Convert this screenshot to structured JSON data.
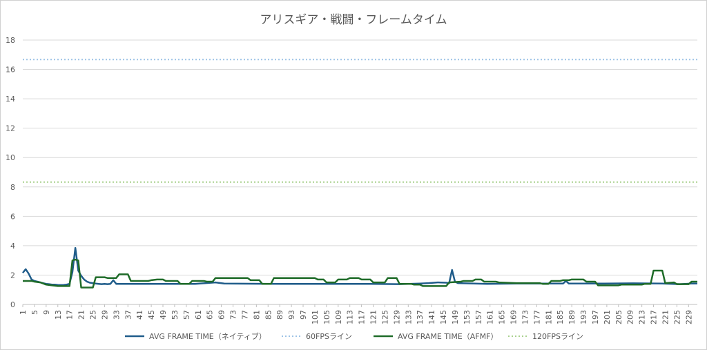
{
  "chart_data": {
    "type": "line",
    "title": "アリスギア・戦闘・フレームタイム",
    "xlabel": "",
    "ylabel": "",
    "ylim": [
      0,
      18
    ],
    "yticks": [
      0,
      2,
      4,
      6,
      8,
      10,
      12,
      14,
      16,
      18
    ],
    "xrange": [
      1,
      232
    ],
    "xtick_start": 1,
    "xtick_step": 4,
    "grid": true,
    "legend_position": "bottom",
    "series": [
      {
        "name": "AVG FRAME TIME（ネイティブ）",
        "color": "#1f5c8a",
        "style": "solid",
        "points": [
          [
            1,
            2.15
          ],
          [
            2,
            2.4
          ],
          [
            3,
            2.1
          ],
          [
            4,
            1.7
          ],
          [
            5,
            1.6
          ],
          [
            6,
            1.55
          ],
          [
            7,
            1.5
          ],
          [
            8,
            1.45
          ],
          [
            9,
            1.4
          ],
          [
            10,
            1.38
          ],
          [
            11,
            1.35
          ],
          [
            12,
            1.35
          ],
          [
            13,
            1.33
          ],
          [
            14,
            1.32
          ],
          [
            15,
            1.33
          ],
          [
            16,
            1.35
          ],
          [
            17,
            1.4
          ],
          [
            18,
            2.2
          ],
          [
            19,
            3.85
          ],
          [
            20,
            2.3
          ],
          [
            21,
            1.95
          ],
          [
            22,
            1.7
          ],
          [
            23,
            1.55
          ],
          [
            24,
            1.48
          ],
          [
            25,
            1.45
          ],
          [
            26,
            1.42
          ],
          [
            27,
            1.4
          ],
          [
            28,
            1.38
          ],
          [
            29,
            1.4
          ],
          [
            30,
            1.38
          ],
          [
            31,
            1.4
          ],
          [
            32,
            1.65
          ],
          [
            33,
            1.4
          ],
          [
            50,
            1.4
          ],
          [
            60,
            1.4
          ],
          [
            67,
            1.5
          ],
          [
            70,
            1.42
          ],
          [
            90,
            1.4
          ],
          [
            110,
            1.4
          ],
          [
            120,
            1.4
          ],
          [
            130,
            1.38
          ],
          [
            137,
            1.42
          ],
          [
            140,
            1.45
          ],
          [
            143,
            1.5
          ],
          [
            146,
            1.48
          ],
          [
            147,
            1.45
          ],
          [
            148,
            2.35
          ],
          [
            149,
            1.55
          ],
          [
            150,
            1.45
          ],
          [
            160,
            1.4
          ],
          [
            170,
            1.42
          ],
          [
            186,
            1.42
          ],
          [
            187,
            1.6
          ],
          [
            188,
            1.42
          ],
          [
            200,
            1.42
          ],
          [
            210,
            1.44
          ],
          [
            220,
            1.42
          ],
          [
            226,
            1.38
          ],
          [
            230,
            1.42
          ],
          [
            232,
            1.42
          ]
        ]
      },
      {
        "name": "60FPSライン",
        "color": "#9dc3e6",
        "style": "dotted",
        "points": [
          [
            1,
            16.67
          ],
          [
            232,
            16.67
          ]
        ]
      },
      {
        "name": "AVG FRAME TIME（AFMF）",
        "color": "#1e6b28",
        "style": "solid",
        "points": [
          [
            1,
            1.6
          ],
          [
            4,
            1.6
          ],
          [
            5,
            1.55
          ],
          [
            7,
            1.5
          ],
          [
            9,
            1.35
          ],
          [
            11,
            1.3
          ],
          [
            13,
            1.25
          ],
          [
            16,
            1.25
          ],
          [
            17,
            1.25
          ],
          [
            18,
            3.0
          ],
          [
            19,
            3.05
          ],
          [
            20,
            3.0
          ],
          [
            21,
            1.15
          ],
          [
            25,
            1.15
          ],
          [
            26,
            1.85
          ],
          [
            29,
            1.85
          ],
          [
            30,
            1.8
          ],
          [
            33,
            1.8
          ],
          [
            34,
            2.05
          ],
          [
            37,
            2.05
          ],
          [
            38,
            1.6
          ],
          [
            44,
            1.6
          ],
          [
            45,
            1.65
          ],
          [
            47,
            1.7
          ],
          [
            49,
            1.7
          ],
          [
            50,
            1.6
          ],
          [
            54,
            1.6
          ],
          [
            55,
            1.4
          ],
          [
            58,
            1.4
          ],
          [
            59,
            1.6
          ],
          [
            63,
            1.6
          ],
          [
            64,
            1.55
          ],
          [
            66,
            1.55
          ],
          [
            67,
            1.8
          ],
          [
            78,
            1.8
          ],
          [
            79,
            1.65
          ],
          [
            82,
            1.65
          ],
          [
            83,
            1.4
          ],
          [
            86,
            1.4
          ],
          [
            87,
            1.8
          ],
          [
            96,
            1.8
          ],
          [
            97,
            1.8
          ],
          [
            101,
            1.8
          ],
          [
            102,
            1.7
          ],
          [
            104,
            1.7
          ],
          [
            105,
            1.5
          ],
          [
            108,
            1.5
          ],
          [
            109,
            1.7
          ],
          [
            112,
            1.7
          ],
          [
            113,
            1.8
          ],
          [
            116,
            1.8
          ],
          [
            117,
            1.7
          ],
          [
            120,
            1.7
          ],
          [
            121,
            1.5
          ],
          [
            125,
            1.5
          ],
          [
            126,
            1.8
          ],
          [
            129,
            1.8
          ],
          [
            130,
            1.4
          ],
          [
            134,
            1.4
          ],
          [
            135,
            1.35
          ],
          [
            137,
            1.35
          ],
          [
            138,
            1.25
          ],
          [
            146,
            1.25
          ],
          [
            147,
            1.5
          ],
          [
            151,
            1.55
          ],
          [
            152,
            1.6
          ],
          [
            155,
            1.6
          ],
          [
            156,
            1.7
          ],
          [
            158,
            1.7
          ],
          [
            159,
            1.55
          ],
          [
            163,
            1.55
          ],
          [
            164,
            1.5
          ],
          [
            170,
            1.45
          ],
          [
            178,
            1.45
          ],
          [
            179,
            1.4
          ],
          [
            181,
            1.4
          ],
          [
            182,
            1.6
          ],
          [
            185,
            1.6
          ],
          [
            186,
            1.65
          ],
          [
            188,
            1.65
          ],
          [
            189,
            1.7
          ],
          [
            193,
            1.7
          ],
          [
            194,
            1.55
          ],
          [
            197,
            1.55
          ],
          [
            198,
            1.3
          ],
          [
            205,
            1.3
          ],
          [
            206,
            1.35
          ],
          [
            213,
            1.35
          ],
          [
            214,
            1.4
          ],
          [
            216,
            1.4
          ],
          [
            217,
            2.3
          ],
          [
            220,
            2.3
          ],
          [
            221,
            1.45
          ],
          [
            224,
            1.5
          ],
          [
            225,
            1.38
          ],
          [
            229,
            1.38
          ],
          [
            230,
            1.55
          ],
          [
            232,
            1.55
          ]
        ]
      },
      {
        "name": "120FPSライン",
        "color": "#a9d18e",
        "style": "dotted",
        "points": [
          [
            1,
            8.33
          ],
          [
            232,
            8.33
          ]
        ]
      }
    ]
  }
}
